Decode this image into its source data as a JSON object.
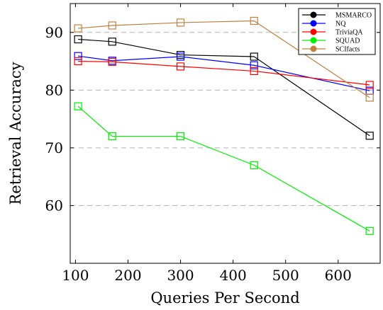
{
  "chart_data": {
    "type": "line",
    "xlabel": "Queries Per Second",
    "ylabel": "Retrieval Accuracy",
    "xlim": [
      90,
      680
    ],
    "ylim": [
      50,
      95
    ],
    "xticks": [
      100,
      200,
      300,
      400,
      500,
      600
    ],
    "yticks": [
      60,
      70,
      80,
      90
    ],
    "grid": "horizontal dashed",
    "legend_position": "top-right",
    "series": [
      {
        "name": "MSMARCO",
        "color": "#000000",
        "x": [
          105,
          170,
          300,
          440,
          660
        ],
        "y": [
          88.8,
          88.4,
          86.1,
          85.8,
          72.1
        ]
      },
      {
        "name": "NQ",
        "color": "#0000ff",
        "x": [
          105,
          170,
          300,
          440,
          660
        ],
        "y": [
          85.9,
          85.1,
          85.8,
          84.3,
          79.9
        ]
      },
      {
        "name": "TriviaQA",
        "color": "#ff0000",
        "x": [
          105,
          170,
          300,
          440,
          660
        ],
        "y": [
          85.0,
          84.9,
          84.1,
          83.3,
          80.9
        ]
      },
      {
        "name": "SQUAD",
        "color": "#00ee00",
        "x": [
          105,
          170,
          300,
          440,
          660
        ],
        "y": [
          77.2,
          72.0,
          72.0,
          67.0,
          55.6
        ]
      },
      {
        "name": "SCIfacts",
        "color": "#bf8040",
        "x": [
          105,
          170,
          300,
          440,
          660
        ],
        "y": [
          90.7,
          91.2,
          91.7,
          92.0,
          78.7
        ]
      }
    ]
  }
}
